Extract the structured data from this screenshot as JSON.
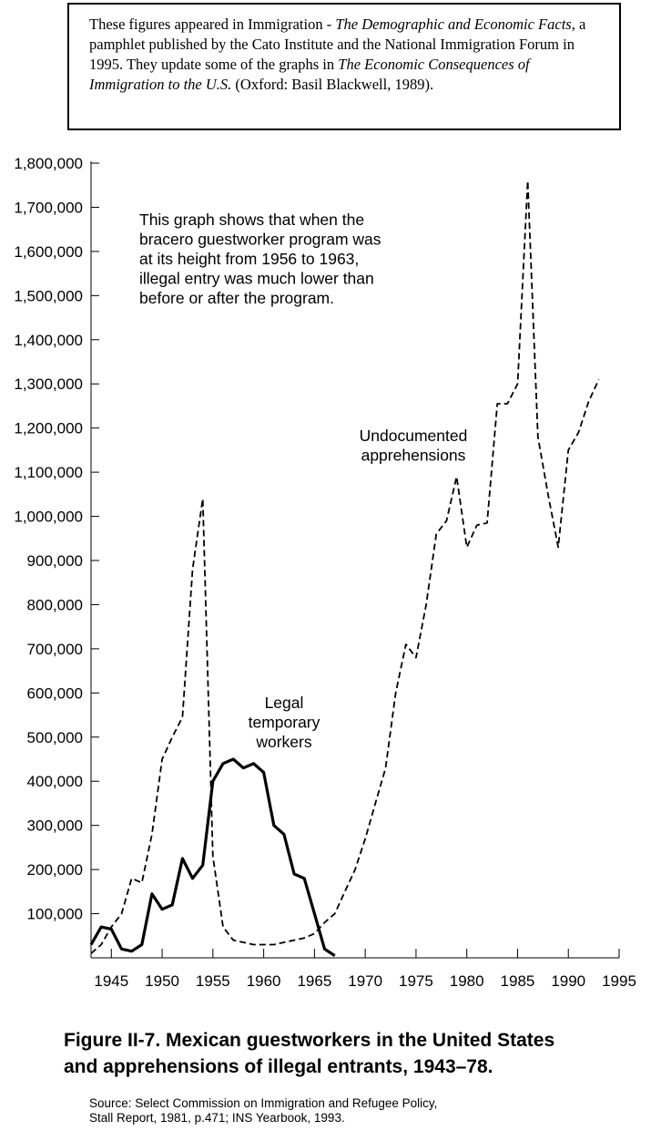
{
  "note": {
    "parts": [
      {
        "text": "These figures appeared in Immigration - ",
        "italic": false
      },
      {
        "text": "The Demographic and Economic Facts",
        "italic": true
      },
      {
        "text": ", a pamphlet published by the Cato Institute and the National Immigration Forum in 1995. They update some of the graphs in ",
        "italic": false
      },
      {
        "text": "The Economic Consequences of Immigration to the U.S.",
        "italic": true
      },
      {
        "text": " (Oxford: Basil Blackwell, 1989).",
        "italic": false
      }
    ]
  },
  "chart_data": {
    "type": "line",
    "title": "",
    "xlabel": "",
    "ylabel": "",
    "xlim": [
      1943,
      1995
    ],
    "ylim": [
      0,
      1800000
    ],
    "x_ticks": [
      1945,
      1950,
      1955,
      1960,
      1965,
      1970,
      1975,
      1980,
      1985,
      1990,
      1995
    ],
    "x_tick_labels": [
      "1945",
      "1950",
      "1955",
      "1960",
      "1965",
      "1970",
      "1975",
      "1980",
      "1985",
      "1990",
      "1995"
    ],
    "y_ticks": [
      100000,
      200000,
      300000,
      400000,
      500000,
      600000,
      700000,
      800000,
      900000,
      1000000,
      1100000,
      1200000,
      1300000,
      1400000,
      1500000,
      1600000,
      1700000,
      1800000
    ],
    "y_tick_labels": [
      "100,000",
      "200,000",
      "300,000",
      "400,000",
      "500,000",
      "600,000",
      "700,000",
      "800,000",
      "900,000",
      "1,000,000",
      "1,100,000",
      "1,200,000",
      "1,300,000",
      "1,400,000",
      "1,500,000",
      "1,600,000",
      "1,700,000",
      "1,800,000"
    ],
    "grid": false,
    "legend": "none",
    "series": [
      {
        "name": "Undocumented apprehensions",
        "style": "dashed",
        "color": "#000000",
        "x": [
          1943,
          1944,
          1945,
          1946,
          1947,
          1948,
          1949,
          1950,
          1951,
          1952,
          1953,
          1954,
          1955,
          1956,
          1957,
          1958,
          1959,
          1960,
          1961,
          1962,
          1963,
          1964,
          1965,
          1966,
          1967,
          1968,
          1969,
          1970,
          1971,
          1972,
          1973,
          1974,
          1975,
          1976,
          1977,
          1978,
          1979,
          1980,
          1981,
          1982,
          1983,
          1984,
          1985,
          1986,
          1987,
          1988,
          1989,
          1990,
          1991,
          1992,
          1993
        ],
        "values": [
          10000,
          30000,
          70000,
          100000,
          180000,
          170000,
          280000,
          450000,
          500000,
          545000,
          880000,
          1040000,
          230000,
          70000,
          40000,
          35000,
          30000,
          30000,
          30000,
          35000,
          40000,
          45000,
          55000,
          80000,
          100000,
          150000,
          200000,
          270000,
          350000,
          430000,
          600000,
          710000,
          680000,
          800000,
          960000,
          990000,
          1090000,
          930000,
          980000,
          985000,
          1255000,
          1255000,
          1300000,
          1760000,
          1180000,
          1050000,
          930000,
          1150000,
          1190000,
          1260000,
          1310000
        ]
      },
      {
        "name": "Legal temporary workers",
        "style": "solid",
        "color": "#000000",
        "x": [
          1943,
          1944,
          1945,
          1946,
          1947,
          1948,
          1949,
          1950,
          1951,
          1952,
          1953,
          1954,
          1955,
          1956,
          1957,
          1958,
          1959,
          1960,
          1961,
          1962,
          1963,
          1964,
          1965,
          1966,
          1967
        ],
        "values": [
          30000,
          70000,
          65000,
          20000,
          15000,
          30000,
          145000,
          110000,
          120000,
          225000,
          180000,
          210000,
          400000,
          440000,
          450000,
          430000,
          440000,
          420000,
          300000,
          280000,
          190000,
          180000,
          100000,
          20000,
          5000
        ]
      }
    ],
    "annotations": [
      {
        "lines": [
          "This graph shows that when the",
          "bracero guestworker program was",
          "at its height from 1956 to 1963,",
          "illegal entry was much lower than",
          "before or after the program."
        ]
      },
      {
        "lines": [
          "Undocumented",
          "apprehensions"
        ]
      },
      {
        "lines": [
          "Legal",
          "temporary",
          "workers"
        ]
      }
    ]
  },
  "caption": {
    "line1": "Figure II-7.  Mexican guestworkers in the United States",
    "line2": "and apprehensions of illegal entrants, 1943–78."
  },
  "source": {
    "line1": "Source: Select Commission on Immigration and Refugee Policy,",
    "line2": "Stall Report, 1981, p.471; INS Yearbook, 1993."
  }
}
